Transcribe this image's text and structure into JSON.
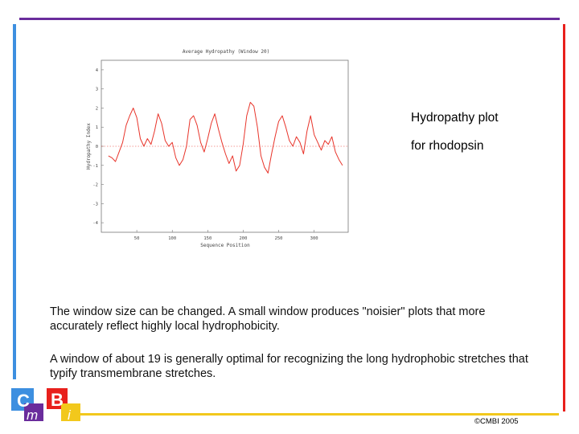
{
  "slide": {
    "caption_line1": "Hydropathy plot",
    "caption_line2": "for rhodopsin",
    "paragraph1": "The window size can be changed. A small window produces \"noisier\" plots that more accurately reflect highly local hydrophobicity.",
    "paragraph2": "A window of about 19 is generally optimal for recognizing the long hydrophobic stretches that typify transmembrane stretches.",
    "copyright": "©CMBI 2005",
    "logo_letters": [
      "C",
      "m",
      "B",
      "i"
    ]
  },
  "colors": {
    "top_bar": "#6a2c9c",
    "left_bar": "#3d8fe0",
    "right_bar": "#e8201c",
    "bottom_bar": "#f2c81c",
    "plot_line": "#e8342a",
    "zero_line": "#e8342a"
  },
  "chart_data": {
    "type": "line",
    "title": "Average Hydropathy (Window 20)",
    "xlabel": "Sequence Position",
    "ylabel": "Hydropathy Index",
    "xlim": [
      0,
      348
    ],
    "ylim": [
      -4.5,
      4.5
    ],
    "xticks": [
      50,
      100,
      150,
      200,
      250,
      300
    ],
    "yticks": [
      4,
      3,
      2,
      1,
      0,
      -1,
      -2,
      -3,
      -4
    ],
    "zero_line": true,
    "grid": false,
    "series": [
      {
        "x": [
          10,
          15,
          20,
          25,
          30,
          35,
          40,
          45,
          50,
          55,
          60,
          65,
          70,
          75,
          80,
          85,
          90,
          95,
          100,
          105,
          110,
          115,
          120,
          125,
          130,
          135,
          140,
          145,
          150,
          155,
          160,
          165,
          170,
          175,
          180,
          185,
          190,
          195,
          200,
          205,
          210,
          215,
          220,
          225,
          230,
          235,
          240,
          245,
          250,
          255,
          260,
          265,
          270,
          275,
          280,
          285,
          290,
          295,
          300,
          305,
          310,
          315,
          320,
          325,
          330,
          335,
          340
        ],
        "values": [
          -0.5,
          -0.6,
          -0.8,
          -0.3,
          0.2,
          1.1,
          1.6,
          2.0,
          1.5,
          0.4,
          0.0,
          0.4,
          0.1,
          0.8,
          1.7,
          1.2,
          0.3,
          0.0,
          0.2,
          -0.6,
          -1.0,
          -0.7,
          0.0,
          1.4,
          1.6,
          1.1,
          0.2,
          -0.3,
          0.4,
          1.2,
          1.7,
          0.9,
          0.2,
          -0.4,
          -0.9,
          -0.5,
          -1.3,
          -1.0,
          0.1,
          1.6,
          2.3,
          2.1,
          1.0,
          -0.5,
          -1.1,
          -1.4,
          -0.4,
          0.5,
          1.3,
          1.6,
          1.0,
          0.3,
          0.0,
          0.5,
          0.2,
          -0.4,
          0.8,
          1.6,
          0.6,
          0.2,
          -0.2,
          0.3,
          0.1,
          0.5,
          -0.3,
          -0.7,
          -1.0
        ]
      }
    ]
  }
}
